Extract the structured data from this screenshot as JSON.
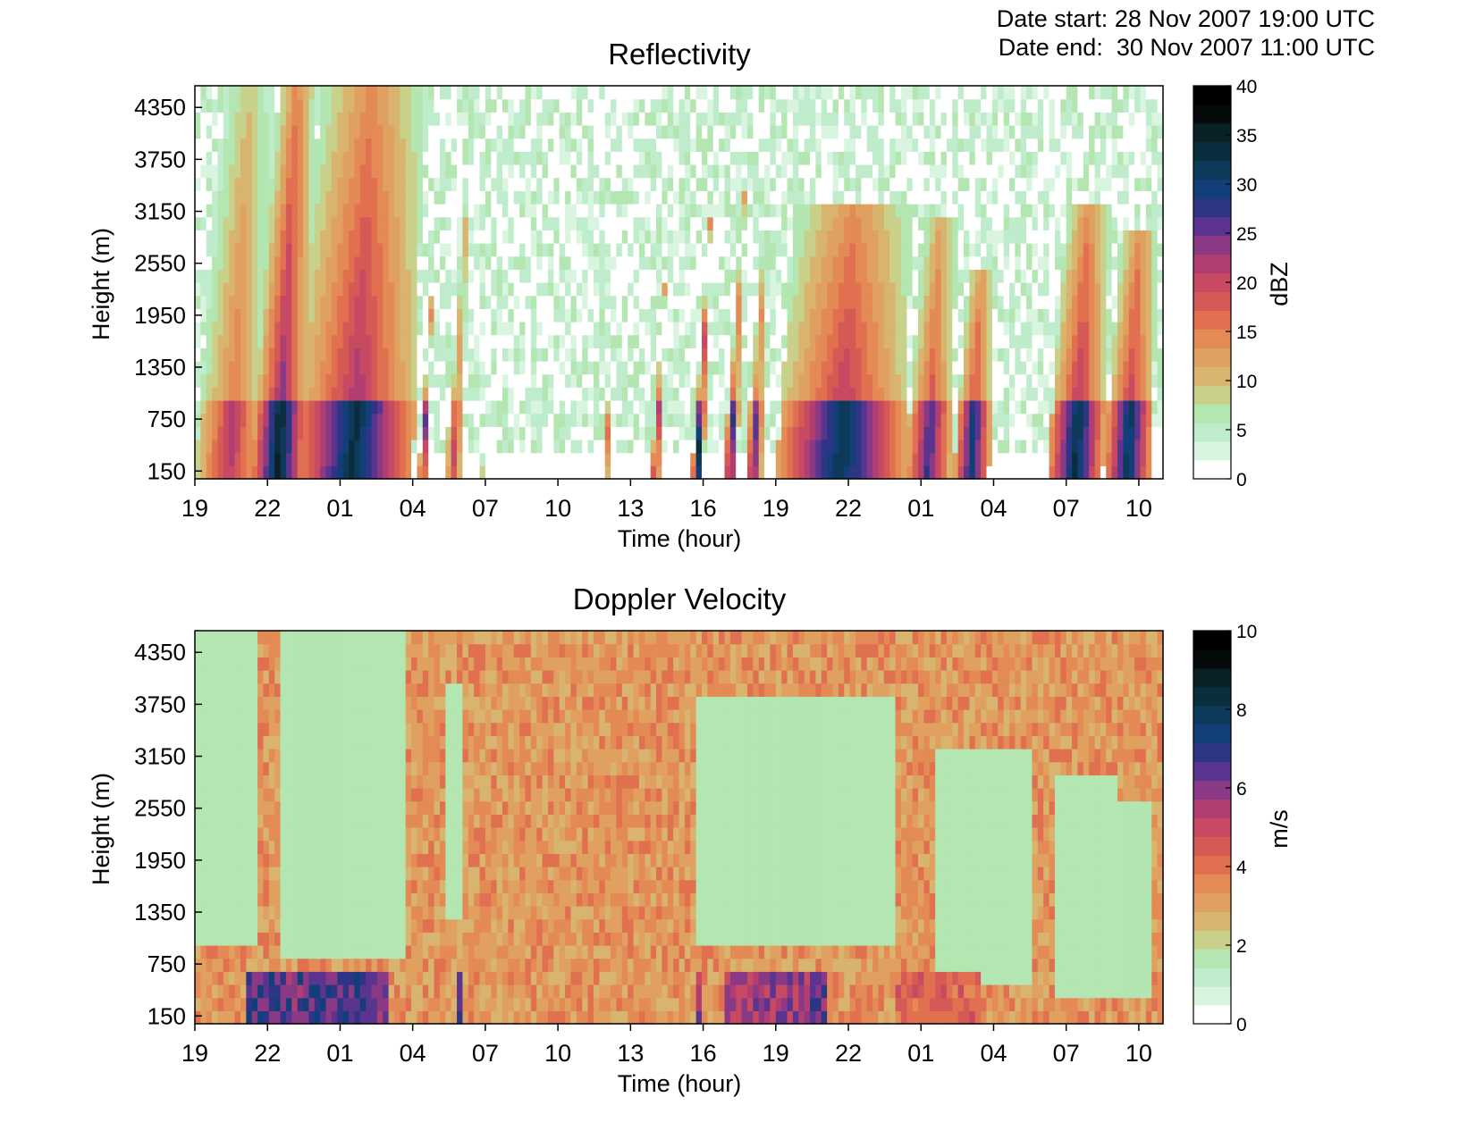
{
  "header": {
    "date_start": "Date start: 28 Nov 2007 19:00 UTC",
    "date_end": "Date end:  30 Nov 2007 11:00 UTC"
  },
  "palette": [
    "#ffffff",
    "#d9f5e0",
    "#bfeccb",
    "#b3e6b0",
    "#c8d08a",
    "#d9b46e",
    "#e0a060",
    "#e38a55",
    "#e07050",
    "#d55a55",
    "#c84a62",
    "#b03e72",
    "#8a3a85",
    "#5a348f",
    "#2e3585",
    "#123f7a",
    "#0d3a5a",
    "#0b2e3e",
    "#0a2226",
    "#050a0a",
    "#000000"
  ],
  "chart_data": [
    {
      "type": "heatmap",
      "title": "Reflectivity",
      "xlabel": "Time (hour)",
      "ylabel": "Height (m)",
      "x_ticks": [
        "19",
        "22",
        "01",
        "04",
        "07",
        "10",
        "13",
        "16",
        "19",
        "22",
        "01",
        "04",
        "07",
        "10"
      ],
      "y_ticks": [
        "150",
        "750",
        "1350",
        "1950",
        "2550",
        "3150",
        "3750",
        "4350"
      ],
      "y_tick_values": [
        150,
        750,
        1350,
        1950,
        2550,
        3150,
        3750,
        4350
      ],
      "x_range_hours": [
        0,
        40
      ],
      "y_range_m": [
        60,
        4600
      ],
      "colorbar": {
        "label": "dBZ",
        "min": 0,
        "max": 40,
        "ticks": [
          "0",
          "5",
          "10",
          "15",
          "20",
          "25",
          "30",
          "35",
          "40"
        ]
      },
      "events": [
        {
          "start": 0.0,
          "end": 2.8,
          "top": 4600,
          "peak": 22
        },
        {
          "start": 2.3,
          "end": 4.5,
          "top": 4600,
          "peak": 36
        },
        {
          "start": 4.0,
          "end": 9.0,
          "top": 4600,
          "peak": 34
        },
        {
          "start": 5.5,
          "end": 8.5,
          "top": 4400,
          "peak": 26
        },
        {
          "start": 9.2,
          "end": 9.6,
          "top": 4100,
          "peak": 26
        },
        {
          "start": 10.3,
          "end": 11.0,
          "top": 4600,
          "peak": 20
        },
        {
          "start": 11.8,
          "end": 12.0,
          "top": 300,
          "peak": 12
        },
        {
          "start": 16.8,
          "end": 17.1,
          "top": 2900,
          "peak": 16
        },
        {
          "start": 18.8,
          "end": 19.2,
          "top": 2800,
          "peak": 24
        },
        {
          "start": 20.5,
          "end": 21.0,
          "top": 4600,
          "peak": 34
        },
        {
          "start": 21.8,
          "end": 22.4,
          "top": 3800,
          "peak": 28
        },
        {
          "start": 22.7,
          "end": 23.4,
          "top": 2800,
          "peak": 27
        },
        {
          "start": 24.0,
          "end": 29.3,
          "top": 3300,
          "peak": 33
        },
        {
          "start": 29.3,
          "end": 31.2,
          "top": 3100,
          "peak": 28
        },
        {
          "start": 31.3,
          "end": 32.8,
          "top": 2500,
          "peak": 31
        },
        {
          "start": 35.2,
          "end": 37.5,
          "top": 3200,
          "peak": 34
        },
        {
          "start": 37.5,
          "end": 39.5,
          "top": 2900,
          "peak": 33
        }
      ]
    },
    {
      "type": "heatmap",
      "title": "Doppler Velocity",
      "xlabel": "Time (hour)",
      "ylabel": "Height (m)",
      "x_ticks": [
        "19",
        "22",
        "01",
        "04",
        "07",
        "10",
        "13",
        "16",
        "19",
        "22",
        "01",
        "04",
        "07",
        "10"
      ],
      "y_ticks": [
        "150",
        "750",
        "1350",
        "1950",
        "2550",
        "3150",
        "3750",
        "4350"
      ],
      "y_tick_values": [
        150,
        750,
        1350,
        1950,
        2550,
        3150,
        3750,
        4350
      ],
      "x_range_hours": [
        0,
        40
      ],
      "y_range_m": [
        60,
        4600
      ],
      "colorbar": {
        "label": "m/s",
        "min": 0,
        "max": 10,
        "ticks": [
          "0",
          "2",
          "4",
          "6",
          "8",
          "10"
        ]
      },
      "low_velocity_regions": [
        {
          "start": 0.0,
          "end": 2.5,
          "bottom": 900,
          "top": 4600
        },
        {
          "start": 3.5,
          "end": 8.8,
          "bottom": 800,
          "top": 4600
        },
        {
          "start": 10.3,
          "end": 11.0,
          "bottom": 1200,
          "top": 4000
        },
        {
          "start": 20.8,
          "end": 29.0,
          "bottom": 900,
          "top": 3800
        },
        {
          "start": 30.5,
          "end": 34.5,
          "bottom": 500,
          "top": 3200
        },
        {
          "start": 35.5,
          "end": 38.0,
          "bottom": 400,
          "top": 3000
        },
        {
          "start": 38.0,
          "end": 39.5,
          "bottom": 300,
          "top": 2700
        }
      ],
      "fast_near_surface": [
        {
          "start": 2.2,
          "end": 8.0,
          "value": 7.0
        },
        {
          "start": 10.8,
          "end": 11.1,
          "value": 7.5
        },
        {
          "start": 20.6,
          "end": 21.0,
          "value": 6.5
        },
        {
          "start": 22.0,
          "end": 25.5,
          "value": 6.0
        },
        {
          "start": 25.3,
          "end": 26.0,
          "value": 6.5
        },
        {
          "start": 29.0,
          "end": 32.5,
          "value": 4.5
        }
      ]
    }
  ]
}
